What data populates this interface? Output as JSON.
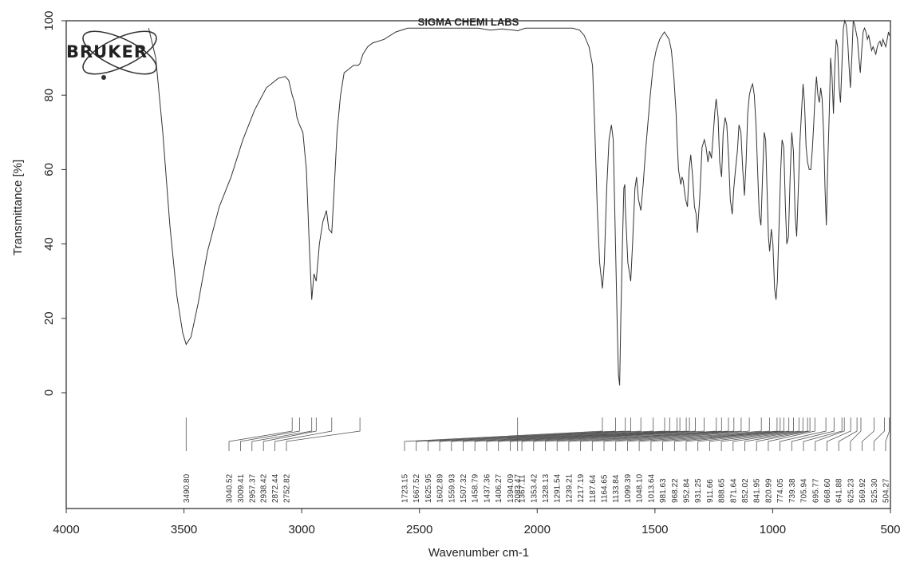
{
  "chart_data": {
    "type": "line",
    "title": "SIGMA CHEMI LABS",
    "logo": "BRUKER",
    "xlabel": "Wavenumber cm-1",
    "ylabel": "Transmittance [%]",
    "xlim": [
      4000,
      500
    ],
    "ylim": [
      -30,
      100
    ],
    "x_reversed": true,
    "x_ticks": [
      "4000",
      "3500",
      "3000",
      "2500",
      "2000",
      "1500",
      "1000",
      "500"
    ],
    "y_ticks": [
      "0",
      "20",
      "40",
      "60",
      "80",
      "100"
    ],
    "grid": false,
    "series": [
      {
        "points": [
          [
            3650,
            98
          ],
          [
            3620,
            90
          ],
          [
            3590,
            70
          ],
          [
            3560,
            45
          ],
          [
            3530,
            26
          ],
          [
            3505,
            16
          ],
          [
            3490.8,
            13
          ],
          [
            3470,
            15
          ],
          [
            3440,
            24
          ],
          [
            3400,
            38
          ],
          [
            3350,
            50
          ],
          [
            3300,
            58
          ],
          [
            3250,
            68
          ],
          [
            3200,
            76
          ],
          [
            3150,
            82
          ],
          [
            3100,
            84.5
          ],
          [
            3070,
            85
          ],
          [
            3055,
            84
          ],
          [
            3040.52,
            80
          ],
          [
            3030,
            78
          ],
          [
            3020,
            74
          ],
          [
            3009.41,
            72
          ],
          [
            2995,
            70
          ],
          [
            2980,
            60
          ],
          [
            2968,
            40
          ],
          [
            2957.37,
            25
          ],
          [
            2948,
            32
          ],
          [
            2938.42,
            30
          ],
          [
            2925,
            40
          ],
          [
            2910,
            46
          ],
          [
            2895,
            49
          ],
          [
            2885,
            44
          ],
          [
            2872.44,
            43
          ],
          [
            2862,
            55
          ],
          [
            2850,
            70
          ],
          [
            2835,
            80
          ],
          [
            2820,
            86
          ],
          [
            2800,
            87
          ],
          [
            2780,
            88
          ],
          [
            2760,
            88
          ],
          [
            2752.82,
            88.5
          ],
          [
            2740,
            91
          ],
          [
            2720,
            93
          ],
          [
            2700,
            94
          ],
          [
            2650,
            95
          ],
          [
            2600,
            97
          ],
          [
            2550,
            98
          ],
          [
            2500,
            98
          ],
          [
            2450,
            98
          ],
          [
            2400,
            98
          ],
          [
            2350,
            98
          ],
          [
            2300,
            98
          ],
          [
            2250,
            98
          ],
          [
            2200,
            97.5
          ],
          [
            2150,
            97.8
          ],
          [
            2100,
            97.5
          ],
          [
            2083.47,
            97.3
          ],
          [
            2050,
            98
          ],
          [
            2000,
            98
          ],
          [
            1950,
            98
          ],
          [
            1900,
            98
          ],
          [
            1850,
            98
          ],
          [
            1820,
            97.5
          ],
          [
            1800,
            96
          ],
          [
            1780,
            93
          ],
          [
            1765,
            88
          ],
          [
            1755,
            70
          ],
          [
            1745,
            50
          ],
          [
            1735,
            35
          ],
          [
            1723.15,
            28
          ],
          [
            1715,
            35
          ],
          [
            1705,
            55
          ],
          [
            1695,
            68
          ],
          [
            1685,
            72
          ],
          [
            1677,
            68
          ],
          [
            1667.52,
            40
          ],
          [
            1660,
            18
          ],
          [
            1655,
            5
          ],
          [
            1650,
            2
          ],
          [
            1645,
            20
          ],
          [
            1638,
            40
          ],
          [
            1632,
            55
          ],
          [
            1628,
            56
          ],
          [
            1625.95,
            50
          ],
          [
            1615,
            35
          ],
          [
            1602.89,
            30
          ],
          [
            1595,
            40
          ],
          [
            1585,
            55
          ],
          [
            1578,
            58
          ],
          [
            1570,
            52
          ],
          [
            1559.93,
            49
          ],
          [
            1550,
            56
          ],
          [
            1540,
            65
          ],
          [
            1520,
            80
          ],
          [
            1507.32,
            88
          ],
          [
            1495,
            92
          ],
          [
            1480,
            95
          ],
          [
            1470,
            96
          ],
          [
            1460,
            97
          ],
          [
            1450,
            96
          ],
          [
            1440,
            95
          ],
          [
            1430,
            92
          ],
          [
            1420,
            85
          ],
          [
            1410,
            75
          ],
          [
            1406,
            68
          ],
          [
            1400,
            60
          ],
          [
            1395,
            58
          ],
          [
            1390,
            56
          ],
          [
            1385,
            58
          ],
          [
            1380,
            57
          ],
          [
            1370,
            52
          ],
          [
            1362,
            50
          ],
          [
            1355,
            60
          ],
          [
            1348,
            64
          ],
          [
            1340,
            58
          ],
          [
            1332,
            50
          ],
          [
            1325,
            48
          ],
          [
            1320,
            43
          ],
          [
            1310,
            52
          ],
          [
            1300,
            66
          ],
          [
            1290,
            68
          ],
          [
            1283,
            66
          ],
          [
            1275,
            62
          ],
          [
            1268,
            65
          ],
          [
            1260,
            63
          ],
          [
            1252,
            70
          ],
          [
            1245,
            76
          ],
          [
            1240,
            79
          ],
          [
            1232,
            74
          ],
          [
            1225,
            62
          ],
          [
            1217,
            58
          ],
          [
            1210,
            70
          ],
          [
            1202,
            74
          ],
          [
            1195,
            72
          ],
          [
            1187,
            63
          ],
          [
            1180,
            52
          ],
          [
            1172,
            48
          ],
          [
            1165,
            55
          ],
          [
            1158,
            60
          ],
          [
            1150,
            65
          ],
          [
            1143,
            72
          ],
          [
            1135,
            70
          ],
          [
            1127,
            60
          ],
          [
            1120,
            53
          ],
          [
            1113,
            62
          ],
          [
            1106,
            75
          ],
          [
            1099,
            80
          ],
          [
            1092,
            82
          ],
          [
            1085,
            83
          ],
          [
            1078,
            80
          ],
          [
            1071,
            72
          ],
          [
            1064,
            60
          ],
          [
            1057,
            48
          ],
          [
            1050,
            45
          ],
          [
            1043,
            58
          ],
          [
            1036,
            70
          ],
          [
            1030,
            68
          ],
          [
            1024,
            55
          ],
          [
            1018,
            42
          ],
          [
            1013,
            38
          ],
          [
            1006,
            44
          ],
          [
            999,
            40
          ],
          [
            992,
            28
          ],
          [
            986,
            25
          ],
          [
            980,
            30
          ],
          [
            973,
            45
          ],
          [
            966,
            60
          ],
          [
            960,
            68
          ],
          [
            953,
            66
          ],
          [
            946,
            50
          ],
          [
            940,
            40
          ],
          [
            933,
            42
          ],
          [
            926,
            58
          ],
          [
            919,
            70
          ],
          [
            912,
            65
          ],
          [
            905,
            48
          ],
          [
            898,
            42
          ],
          [
            891,
            55
          ],
          [
            884,
            68
          ],
          [
            877,
            76
          ],
          [
            871,
            83
          ],
          [
            865,
            78
          ],
          [
            858,
            66
          ],
          [
            852,
            62
          ],
          [
            845,
            60
          ],
          [
            838,
            60
          ],
          [
            832,
            65
          ],
          [
            826,
            72
          ],
          [
            820,
            80
          ],
          [
            814,
            85
          ],
          [
            808,
            80
          ],
          [
            802,
            78
          ],
          [
            796,
            82
          ],
          [
            790,
            79
          ],
          [
            784,
            70
          ],
          [
            778,
            55
          ],
          [
            772,
            45
          ],
          [
            766,
            62
          ],
          [
            760,
            75
          ],
          [
            754,
            90
          ],
          [
            748,
            85
          ],
          [
            742,
            75
          ],
          [
            736,
            88
          ],
          [
            730,
            95
          ],
          [
            724,
            93
          ],
          [
            718,
            82
          ],
          [
            712,
            78
          ],
          [
            706,
            88
          ],
          [
            700,
            98
          ],
          [
            694,
            100
          ],
          [
            688,
            99
          ],
          [
            682,
            95
          ],
          [
            676,
            88
          ],
          [
            670,
            82
          ],
          [
            664,
            90
          ],
          [
            658,
            100
          ],
          [
            652,
            99
          ],
          [
            646,
            97
          ],
          [
            640,
            95
          ],
          [
            634,
            90
          ],
          [
            628,
            86
          ],
          [
            622,
            92
          ],
          [
            616,
            97
          ],
          [
            610,
            98
          ],
          [
            604,
            97
          ],
          [
            598,
            95
          ],
          [
            592,
            96
          ],
          [
            586,
            94
          ],
          [
            580,
            92
          ],
          [
            574,
            93
          ],
          [
            568,
            92
          ],
          [
            562,
            91
          ],
          [
            556,
            93
          ],
          [
            550,
            94
          ],
          [
            544,
            94.5
          ],
          [
            538,
            93
          ],
          [
            532,
            95
          ],
          [
            526,
            94
          ],
          [
            520,
            93
          ],
          [
            514,
            95
          ],
          [
            508,
            97
          ],
          [
            504,
            96
          ]
        ]
      }
    ]
  },
  "peaks": [
    "3490.80",
    "3040.52",
    "3009.41",
    "2957.37",
    "2938.42",
    "2872.44",
    "2752.82",
    "2083.47",
    "1723.15",
    "1667.52",
    "1625.95",
    "1602.89",
    "1559.93",
    "1507.32",
    "1458.79",
    "1437.36",
    "1406.27",
    "1394.09",
    "1367.11",
    "1353.42",
    "1328.13",
    "1291.54",
    "1239.21",
    "1217.19",
    "1187.64",
    "1164.65",
    "1133.84",
    "1099.39",
    "1048.10",
    "1013.64",
    "981.63",
    "968.22",
    "952.84",
    "931.25",
    "911.66",
    "888.65",
    "871.64",
    "852.02",
    "841.95",
    "820.99",
    "774.05",
    "739.38",
    "705.94",
    "695.77",
    "668.60",
    "641.88",
    "625.23",
    "569.92",
    "525.30",
    "504.27"
  ]
}
